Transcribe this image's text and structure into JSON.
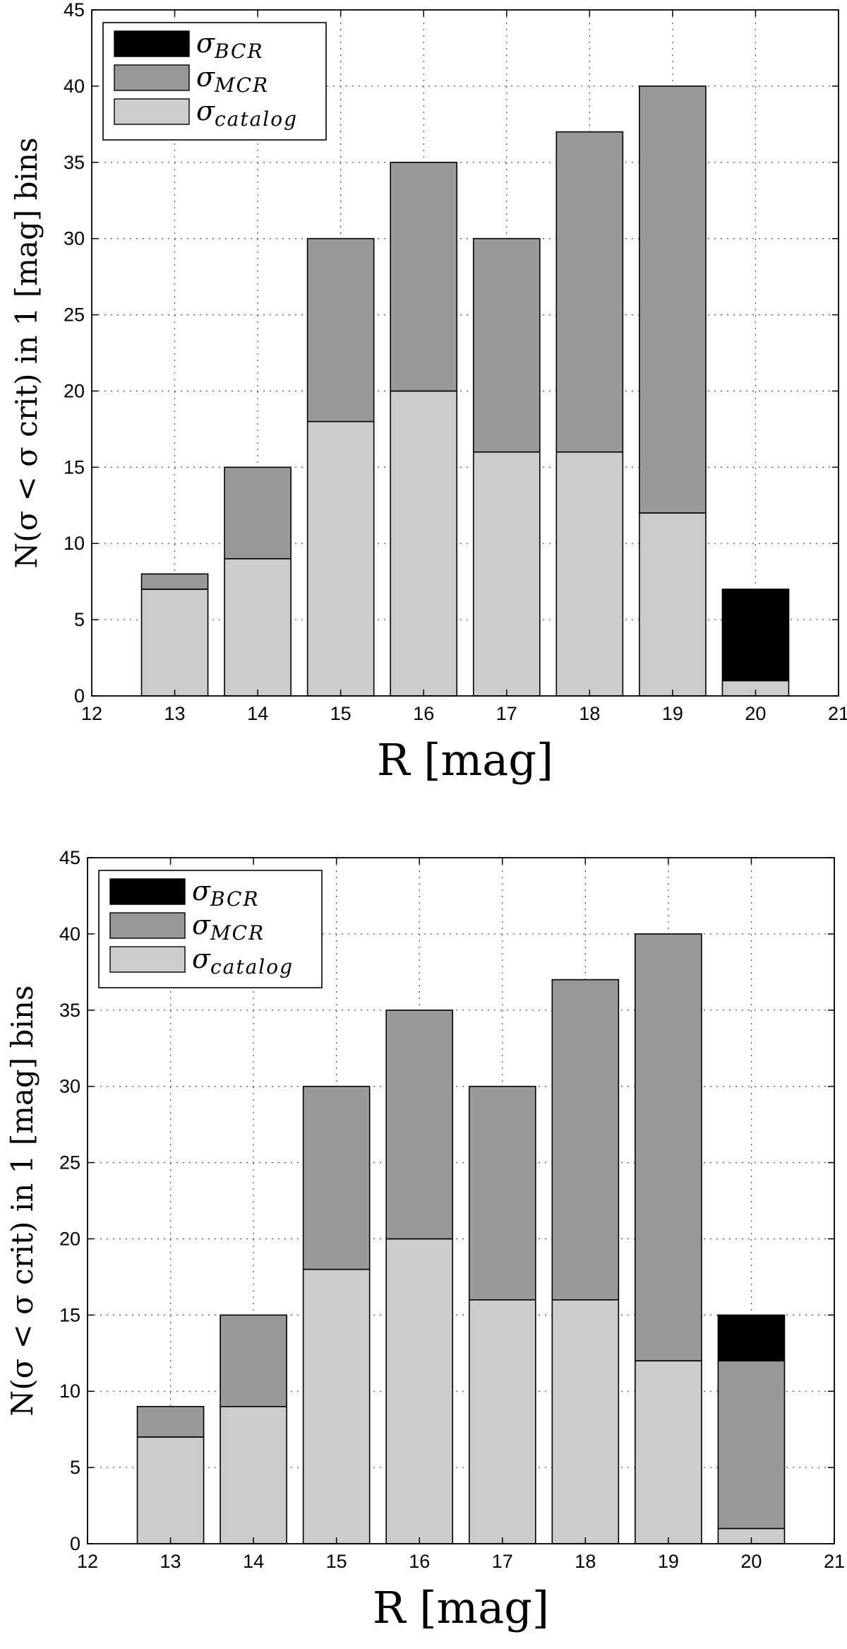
{
  "chart_data": [
    {
      "type": "bar",
      "stacked": true,
      "title": "",
      "xlabel": "R [mag]",
      "ylabel": "N(σ < σ crit) in 1 [mag] bins",
      "xlim": [
        12,
        21
      ],
      "ylim": [
        0,
        45
      ],
      "xticks": [
        12,
        13,
        14,
        15,
        16,
        17,
        18,
        19,
        20,
        21
      ],
      "yticks": [
        0,
        5,
        10,
        15,
        20,
        25,
        30,
        35,
        40,
        45
      ],
      "x": [
        13,
        14,
        15,
        16,
        17,
        18,
        19,
        20
      ],
      "grid": true,
      "legend_position": "top-left",
      "series": [
        {
          "name": "catalog",
          "legend_main": "σ",
          "legend_sub": "catalog",
          "color": "#cccccc",
          "values": [
            7,
            9,
            18,
            20,
            16,
            16,
            12,
            1
          ]
        },
        {
          "name": "MCR",
          "legend_main": "σ",
          "legend_sub": "MCR",
          "color": "#999999",
          "values": [
            1,
            6,
            12,
            15,
            14,
            21,
            28,
            0
          ]
        },
        {
          "name": "BCR",
          "legend_main": "σ",
          "legend_sub": "BCR",
          "color": "#000000",
          "values": [
            0,
            0,
            0,
            0,
            0,
            0,
            0,
            6
          ]
        }
      ]
    },
    {
      "type": "bar",
      "stacked": true,
      "title": "",
      "xlabel": "R [mag]",
      "ylabel": "N(σ < σ crit) in 1 [mag] bins",
      "xlim": [
        12,
        21
      ],
      "ylim": [
        0,
        45
      ],
      "xticks": [
        12,
        13,
        14,
        15,
        16,
        17,
        18,
        19,
        20,
        21
      ],
      "yticks": [
        0,
        5,
        10,
        15,
        20,
        25,
        30,
        35,
        40,
        45
      ],
      "x": [
        13,
        14,
        15,
        16,
        17,
        18,
        19,
        20
      ],
      "grid": true,
      "legend_position": "top-left",
      "series": [
        {
          "name": "catalog",
          "legend_main": "σ",
          "legend_sub": "catalog",
          "color": "#cccccc",
          "values": [
            7,
            9,
            18,
            20,
            16,
            16,
            12,
            1
          ]
        },
        {
          "name": "MCR",
          "legend_main": "σ",
          "legend_sub": "MCR",
          "color": "#999999",
          "values": [
            2,
            6,
            12,
            15,
            14,
            21,
            28,
            11
          ]
        },
        {
          "name": "BCR",
          "legend_main": "σ",
          "legend_sub": "BCR",
          "color": "#000000",
          "values": [
            0,
            0,
            0,
            0,
            0,
            0,
            0,
            3
          ]
        }
      ]
    }
  ]
}
